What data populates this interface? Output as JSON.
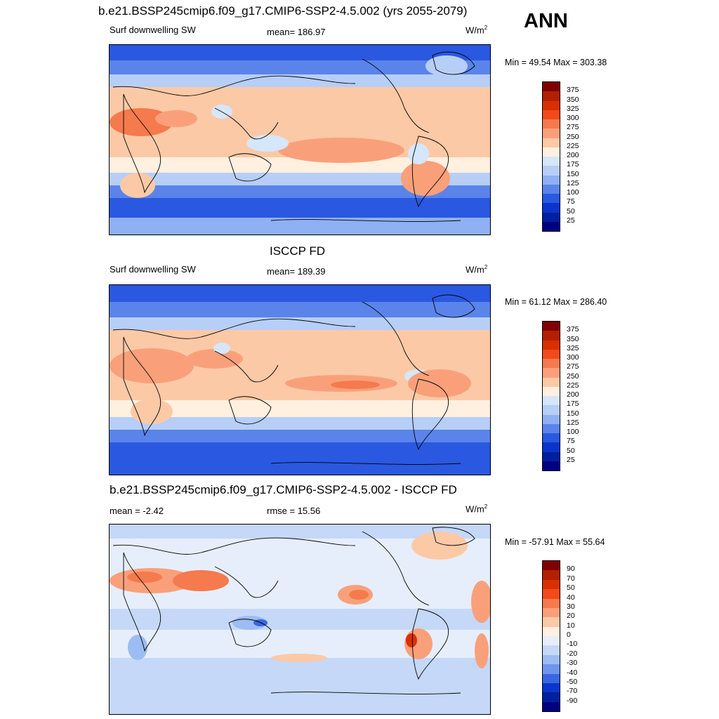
{
  "header": {
    "title": "b.e21.BSSP245cmip6.f09_g17.CMIP6-SSP2-4.5.002 (yrs 2055-2079)",
    "season": "ANN"
  },
  "panels": [
    {
      "id": "model",
      "title": "",
      "left_label": "Surf downwelling SW",
      "center_label": "mean= 186.97",
      "unit": "W/m",
      "unit_sup": "2",
      "minmax": "Min =  49.54 Max = 303.38",
      "ticks": [
        "375",
        "350",
        "325",
        "300",
        "275",
        "250",
        "225",
        "200",
        "175",
        "150",
        "125",
        "100",
        "75",
        "50",
        "25"
      ],
      "colors": [
        "#800000",
        "#b22000",
        "#d93000",
        "#f24a1a",
        "#f57a4d",
        "#f9a07a",
        "#fcc9a6",
        "#fff0e0",
        "#d6e6fb",
        "#b7cef7",
        "#8fb0f2",
        "#5a84ea",
        "#2a58e0",
        "#0a34cc",
        "#001f9e",
        "#000080"
      ]
    },
    {
      "id": "obs",
      "title": "ISCCP FD",
      "left_label": "Surf downwelling SW",
      "center_label": "mean= 189.39",
      "unit": "W/m",
      "unit_sup": "2",
      "minmax": "Min =  61.12 Max = 286.40",
      "ticks": [
        "375",
        "350",
        "325",
        "300",
        "275",
        "250",
        "225",
        "200",
        "175",
        "150",
        "125",
        "100",
        "75",
        "50",
        "25"
      ],
      "colors": [
        "#800000",
        "#b22000",
        "#d93000",
        "#f24a1a",
        "#f57a4d",
        "#f9a07a",
        "#fcc9a6",
        "#fff0e0",
        "#d6e6fb",
        "#b7cef7",
        "#8fb0f2",
        "#5a84ea",
        "#2a58e0",
        "#0a34cc",
        "#001f9e",
        "#000080"
      ]
    },
    {
      "id": "diff",
      "title": "b.e21.BSSP245cmip6.f09_g17.CMIP6-SSP2-4.5.002 - ISCCP FD",
      "left_label": "mean =  -2.42",
      "center_label": "rmse =  15.56",
      "unit": "W/m",
      "unit_sup": "2",
      "minmax": "Min = -57.91 Max =  55.64",
      "ticks": [
        "90",
        "70",
        "50",
        "40",
        "30",
        "20",
        "10",
        "0",
        "-10",
        "-20",
        "-30",
        "-40",
        "-50",
        "-70",
        "-90"
      ],
      "colors": [
        "#800000",
        "#b22000",
        "#d93000",
        "#f24a1a",
        "#f57a4d",
        "#f9a07a",
        "#fcc9a6",
        "#fff0e0",
        "#e6eefc",
        "#c5d8f8",
        "#9dbcf3",
        "#6f96ec",
        "#3a66e2",
        "#0a34cc",
        "#001f9e",
        "#000080"
      ]
    }
  ]
}
